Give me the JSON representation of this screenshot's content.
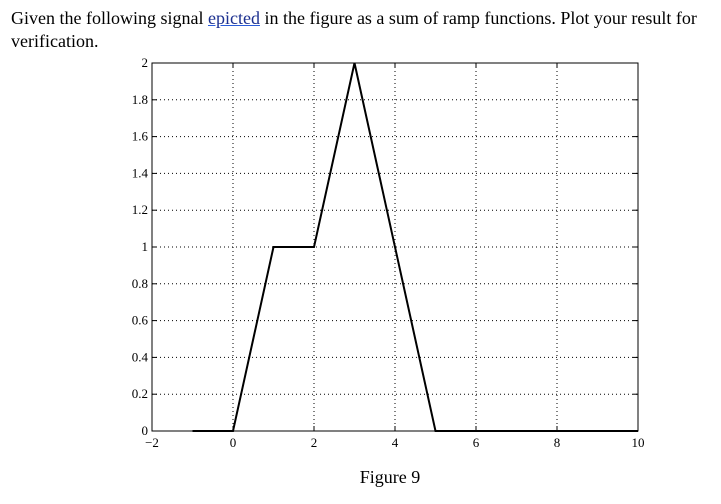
{
  "question": {
    "text_before": "Given the following signal ",
    "underlined_word": "epicted",
    "text_after": " in the figure as a sum of ramp functions. Plot your result for verification."
  },
  "figure_caption": "Figure 9",
  "chart_data": {
    "type": "line",
    "title": "",
    "xlabel": "",
    "ylabel": "",
    "xlim": [
      -2,
      10
    ],
    "ylim": [
      0,
      2
    ],
    "grid": true,
    "x_ticks": [
      -2,
      0,
      2,
      4,
      6,
      8,
      10
    ],
    "x_tick_labels": [
      "−2",
      "0",
      "2",
      "4",
      "6",
      "8",
      "10"
    ],
    "y_ticks": [
      0,
      0.2,
      0.4,
      0.6,
      0.8,
      1,
      1.2,
      1.4,
      1.6,
      1.8,
      2
    ],
    "y_tick_labels": [
      "0",
      "0.2",
      "0.4",
      "0.6",
      "0.8",
      "1",
      "1.2",
      "1.4",
      "1.6",
      "1.8",
      "2"
    ],
    "series": [
      {
        "x": [
          -1,
          0,
          1,
          2,
          3,
          5,
          10
        ],
        "y": [
          0,
          0,
          1,
          1,
          2,
          0,
          0
        ],
        "color": "#000000"
      }
    ]
  }
}
